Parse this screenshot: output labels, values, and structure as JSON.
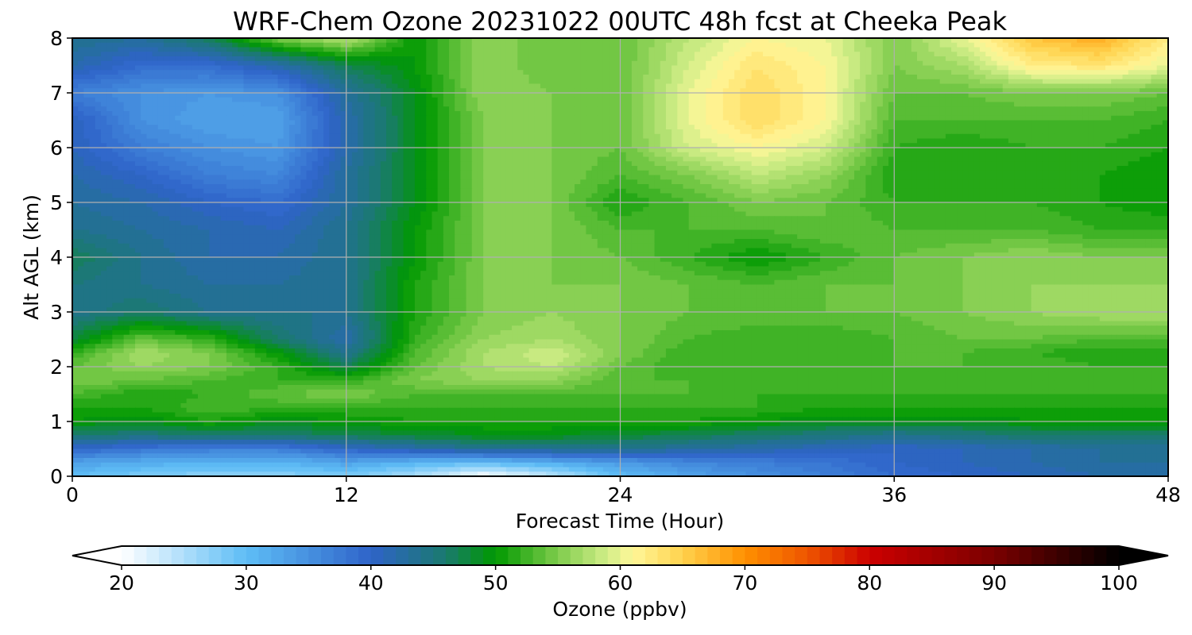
{
  "chart_data": {
    "type": "heatmap",
    "title": "WRF-Chem Ozone  20231022 00UTC 48h fcst at Cheeka Peak",
    "xlabel": "Forecast Time (Hour)",
    "ylabel": "Alt AGL (km)",
    "xlim": [
      0,
      48
    ],
    "ylim": [
      0,
      8
    ],
    "x_ticks": [
      "0",
      "12",
      "24",
      "36",
      "48"
    ],
    "y_ticks": [
      "0",
      "1",
      "2",
      "3",
      "4",
      "5",
      "6",
      "7",
      "8"
    ],
    "grid": true,
    "x": [
      0,
      3,
      6,
      9,
      12,
      15,
      18,
      21,
      24,
      27,
      30,
      33,
      36,
      39,
      42,
      45,
      48
    ],
    "y": [
      0,
      0.25,
      0.5,
      0.75,
      1.0,
      1.25,
      1.5,
      1.75,
      2.0,
      2.25,
      2.5,
      3.0,
      3.5,
      4.0,
      4.5,
      5.0,
      5.5,
      6.0,
      6.5,
      7.0,
      7.5,
      8.0
    ],
    "z": [
      [
        30,
        28,
        27,
        27,
        28,
        25,
        20,
        24,
        30,
        33,
        35,
        37,
        39,
        40,
        41,
        42,
        43
      ],
      [
        33,
        32,
        31,
        31,
        33,
        31,
        30,
        32,
        34,
        36,
        37,
        38,
        40,
        41,
        42,
        43,
        43
      ],
      [
        40,
        38,
        37,
        37,
        40,
        42,
        44,
        44,
        44,
        43,
        42,
        41,
        40,
        41,
        42,
        43,
        43
      ],
      [
        46,
        45,
        46,
        46,
        47,
        48,
        49,
        49,
        48,
        47,
        46,
        45,
        44,
        45,
        46,
        46,
        46
      ],
      [
        50,
        49,
        51,
        49,
        50,
        51,
        51,
        51,
        51,
        51,
        50,
        49,
        49,
        49,
        50,
        50,
        50
      ],
      [
        51,
        51,
        53,
        52,
        52,
        52,
        52,
        52,
        52,
        52,
        52,
        51,
        51,
        51,
        51,
        51,
        51
      ],
      [
        53,
        51,
        52,
        54,
        55,
        53,
        53,
        53,
        53,
        53,
        52,
        52,
        52,
        52,
        52,
        52,
        52
      ],
      [
        55,
        54,
        53,
        52,
        52,
        55,
        56,
        56,
        53,
        53,
        53,
        52,
        53,
        52,
        52,
        52,
        52
      ],
      [
        54,
        56,
        55,
        52,
        47,
        54,
        57,
        58,
        54,
        52,
        52,
        52,
        53,
        53,
        53,
        52,
        52
      ],
      [
        52,
        57,
        55,
        50,
        44,
        53,
        57,
        59,
        55,
        52,
        52,
        52,
        53,
        53,
        52,
        51,
        51
      ],
      [
        48,
        54,
        52,
        46,
        42,
        52,
        56,
        57,
        55,
        53,
        52,
        52,
        53,
        54,
        54,
        53,
        53
      ],
      [
        44,
        46,
        44,
        44,
        44,
        51,
        55,
        56,
        55,
        54,
        54,
        54,
        54,
        55,
        56,
        57,
        57
      ],
      [
        45,
        44,
        43,
        43,
        44,
        51,
        55,
        55,
        55,
        54,
        53,
        54,
        54,
        55,
        56,
        56,
        56
      ],
      [
        47,
        44,
        42,
        42,
        44,
        50,
        55,
        55,
        54,
        52,
        50,
        52,
        54,
        55,
        56,
        55,
        55
      ],
      [
        44,
        43,
        42,
        41,
        44,
        50,
        55,
        55,
        53,
        53,
        53,
        54,
        53,
        53,
        53,
        52,
        52
      ],
      [
        43,
        42,
        40,
        39,
        43,
        49,
        55,
        55,
        51,
        53,
        55,
        54,
        52,
        52,
        52,
        51,
        50
      ],
      [
        42,
        40,
        37,
        36,
        43,
        49,
        55,
        55,
        53,
        55,
        58,
        56,
        51,
        51,
        51,
        51,
        50
      ],
      [
        41,
        37,
        35,
        34,
        42,
        49,
        55,
        55,
        54,
        59,
        61,
        59,
        52,
        51,
        52,
        52,
        51
      ],
      [
        41,
        35,
        33,
        33,
        42,
        49,
        55,
        55,
        54,
        60,
        64,
        61,
        53,
        53,
        53,
        53,
        52
      ],
      [
        37,
        35,
        34,
        35,
        43,
        49,
        56,
        55,
        54,
        60,
        64,
        61,
        54,
        54,
        55,
        55,
        54
      ],
      [
        42,
        39,
        39,
        42,
        47,
        50,
        56,
        54,
        54,
        59,
        63,
        61,
        55,
        57,
        62,
        63,
        60
      ],
      [
        44,
        43,
        47,
        55,
        58,
        50,
        56,
        54,
        54,
        58,
        61,
        60,
        55,
        60,
        66,
        68,
        62
      ]
    ],
    "colorbar": {
      "label": "Ozone  (ppbv)",
      "min": 20,
      "max": 100,
      "step": 1,
      "extend": "both",
      "ticks": [
        "20",
        "30",
        "40",
        "50",
        "60",
        "70",
        "80",
        "90",
        "100"
      ],
      "stops": [
        {
          "v": 20,
          "c": "#ffffff"
        },
        {
          "v": 30,
          "c": "#5ebdf6"
        },
        {
          "v": 40,
          "c": "#2f63c9"
        },
        {
          "v": 46,
          "c": "#1a7a6e"
        },
        {
          "v": 50,
          "c": "#009900"
        },
        {
          "v": 55,
          "c": "#7fcc4c"
        },
        {
          "v": 59,
          "c": "#d2ee88"
        },
        {
          "v": 61,
          "c": "#fff799"
        },
        {
          "v": 65,
          "c": "#ffd24d"
        },
        {
          "v": 70,
          "c": "#ff9000"
        },
        {
          "v": 75,
          "c": "#ee5500"
        },
        {
          "v": 80,
          "c": "#cc0000"
        },
        {
          "v": 90,
          "c": "#7a0000"
        },
        {
          "v": 100,
          "c": "#000000"
        }
      ]
    }
  }
}
